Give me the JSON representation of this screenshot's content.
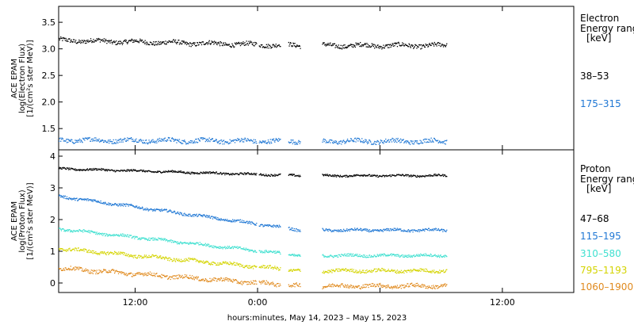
{
  "chart_data": [
    {
      "type": "scatter",
      "panel": "electron",
      "ylabel_lines": [
        "ACE EPAM",
        "log(Electron Flux)",
        "[1/(cm²s ster MeV)]"
      ],
      "ylim": [
        1.1,
        3.8
      ],
      "yticks": [
        1.5,
        2.0,
        2.5,
        3.0,
        3.5
      ],
      "ytick_labels": [
        "1.5",
        "2.0",
        "2.5",
        "3.0",
        "3.5"
      ],
      "legend_title": [
        "Electron",
        "Energy range",
        "[keV]"
      ],
      "series": [
        {
          "name": "38–53",
          "color": "#000000",
          "level": 3.07,
          "start_level": 3.17,
          "spread": 0.04
        },
        {
          "name": "175–315",
          "color": "#1f77d4",
          "level": 1.27,
          "start_level": 1.29,
          "spread": 0.04
        }
      ]
    },
    {
      "type": "scatter",
      "panel": "proton",
      "ylabel_lines": [
        "ACE EPAM",
        "log(Proton Flux)",
        "[1/(cm²s ster MeV)]"
      ],
      "ylim": [
        -0.3,
        4.2
      ],
      "yticks": [
        0,
        1,
        2,
        3,
        4
      ],
      "ytick_labels": [
        "0",
        "1",
        "2",
        "3",
        "4"
      ],
      "legend_title": [
        "Proton",
        "Energy range",
        "[keV]"
      ],
      "series": [
        {
          "name": "47–68",
          "color": "#000000",
          "level": 3.4,
          "start_level": 3.62,
          "spread": 0.03
        },
        {
          "name": "115–195",
          "color": "#1f77d4",
          "level": 1.68,
          "start_level": 2.75,
          "spread": 0.04
        },
        {
          "name": "310–580",
          "color": "#40e0d0",
          "level": 0.88,
          "start_level": 1.72,
          "spread": 0.04
        },
        {
          "name": "795–1193",
          "color": "#d4d400",
          "level": 0.4,
          "start_level": 1.1,
          "spread": 0.05
        },
        {
          "name": "1060–1900",
          "color": "#e08a1e",
          "level": -0.08,
          "start_level": 0.48,
          "spread": 0.06
        }
      ]
    }
  ],
  "x_axis": {
    "range_hours": [
      4.5,
      55
    ],
    "ticks_hours": [
      12,
      24,
      36,
      48
    ],
    "tick_labels": [
      "12:00",
      "0:00",
      "",
      "12:00"
    ],
    "data_start_hours": 4.5,
    "data_end_hours": 42.5,
    "gaps_hours": [
      [
        23.9,
        24.1
      ],
      [
        26.2,
        27.0
      ],
      [
        28.2,
        30.3
      ]
    ],
    "label": "hours:minutes, May 14, 2023 – May 15, 2023"
  }
}
